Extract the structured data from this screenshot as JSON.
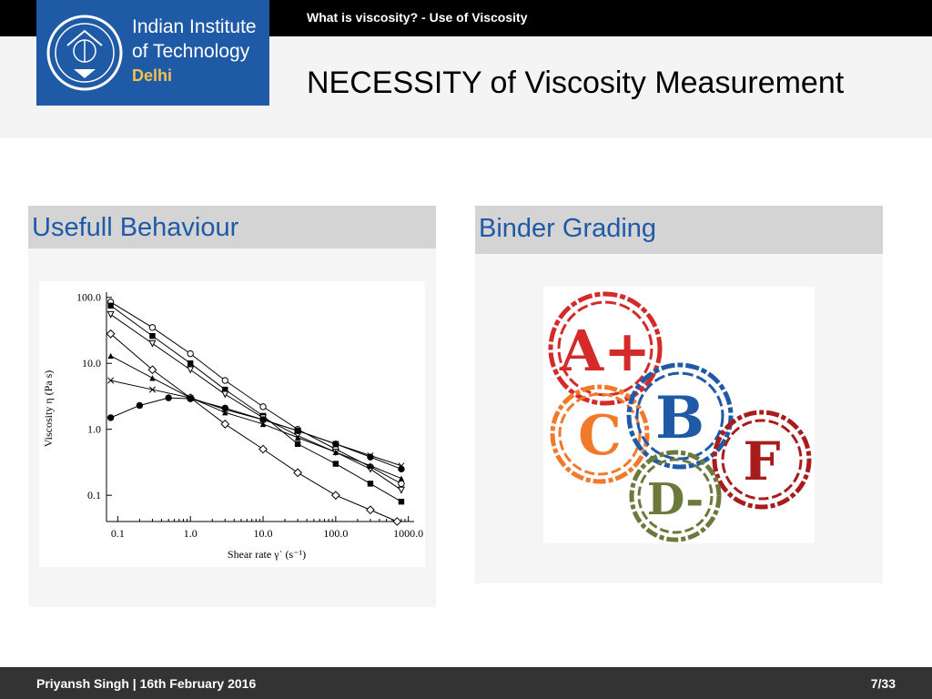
{
  "header": {
    "section_title": "What is viscosity? - Use of Viscosity",
    "slide_title": "NECESSITY of Viscosity Measurement"
  },
  "logo": {
    "line1": "Indian Institute",
    "line2": "of Technology",
    "line3": "Delhi",
    "bg_color": "#1f5aa6",
    "accent_color": "#f2c14e"
  },
  "left_block": {
    "title": "Usefull Behaviour"
  },
  "right_block": {
    "title": "Binder Grading",
    "grades": [
      {
        "label": "A+",
        "color": "#d42a2a"
      },
      {
        "label": "C",
        "color": "#f07a2a"
      },
      {
        "label": "B",
        "color": "#1f5aa6"
      },
      {
        "label": "F",
        "color": "#a81c1c"
      },
      {
        "label": "D-",
        "color": "#6b7a3a"
      }
    ]
  },
  "chart_data": {
    "type": "line",
    "xlabel": "Shear rate γ˙ (s⁻¹)",
    "ylabel": "Viscosity η (Pa s)",
    "xscale": "log",
    "yscale": "log",
    "xlim": [
      0.07,
      1200
    ],
    "ylim": [
      0.04,
      120
    ],
    "xticks": [
      {
        "v": 0.1,
        "label": "0.1"
      },
      {
        "v": 1,
        "label": "1.0"
      },
      {
        "v": 10,
        "label": "10.0"
      },
      {
        "v": 100,
        "label": "100.0"
      },
      {
        "v": 1000,
        "label": "1000.0"
      }
    ],
    "yticks": [
      {
        "v": 0.1,
        "label": "0.1"
      },
      {
        "v": 1,
        "label": "1.0"
      },
      {
        "v": 10,
        "label": "10.0"
      },
      {
        "v": 100,
        "label": "100.0"
      }
    ],
    "grid": false,
    "series": [
      {
        "marker": "open-circle",
        "x": [
          0.08,
          0.3,
          1,
          3,
          10,
          30,
          100,
          300,
          800
        ],
        "y": [
          85,
          35,
          14,
          5.5,
          2.2,
          1,
          0.5,
          0.27,
          0.15
        ]
      },
      {
        "marker": "filled-square",
        "x": [
          0.08,
          0.3,
          1,
          3,
          10,
          30,
          100,
          300,
          800
        ],
        "y": [
          75,
          26,
          10,
          4,
          1.6,
          0.6,
          0.3,
          0.15,
          0.08
        ]
      },
      {
        "marker": "open-triangle-down",
        "x": [
          0.08,
          0.3,
          1,
          3,
          10,
          30,
          100,
          300,
          800
        ],
        "y": [
          55,
          20,
          8,
          3.4,
          1.5,
          0.8,
          0.45,
          0.25,
          0.12
        ]
      },
      {
        "marker": "open-diamond",
        "x": [
          0.08,
          0.3,
          1,
          3,
          10,
          30,
          100,
          300,
          700
        ],
        "y": [
          28,
          8,
          3,
          1.2,
          0.5,
          0.22,
          0.1,
          0.06,
          0.04
        ]
      },
      {
        "marker": "filled-triangle",
        "x": [
          0.08,
          0.3,
          1,
          3,
          10,
          30,
          100,
          300,
          800
        ],
        "y": [
          13,
          6,
          3,
          1.8,
          1.2,
          0.75,
          0.45,
          0.28,
          0.18
        ]
      },
      {
        "marker": "cross",
        "x": [
          0.08,
          0.3,
          1,
          3,
          10,
          30,
          100,
          300,
          800
        ],
        "y": [
          5.5,
          4,
          3,
          2,
          1.4,
          0.95,
          0.6,
          0.4,
          0.28
        ]
      },
      {
        "marker": "filled-circle",
        "x": [
          0.08,
          0.2,
          0.5,
          1,
          3,
          10,
          30,
          100,
          300,
          800
        ],
        "y": [
          1.5,
          2.3,
          3,
          2.9,
          2.1,
          1.4,
          0.95,
          0.6,
          0.38,
          0.25
        ]
      }
    ]
  },
  "footer": {
    "author_date": "Priyansh Singh | 16th February 2016",
    "page": "7/33"
  }
}
